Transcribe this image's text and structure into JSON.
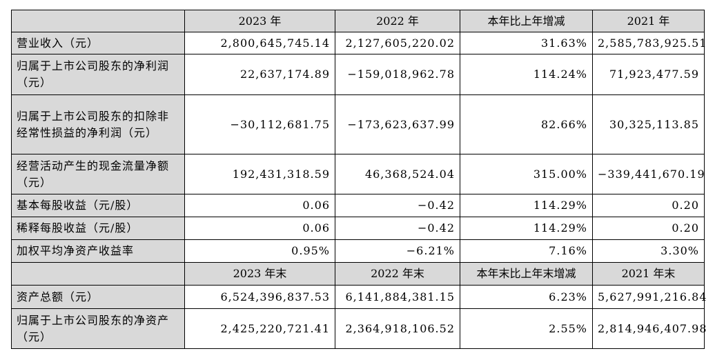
{
  "header1": [
    "2023 年",
    "2022 年",
    "本年比上年增减",
    "2021 年"
  ],
  "rows1": [
    {
      "label": "营业收入（元）",
      "v2023": "2,800,645,745.14",
      "v2022": "2,127,605,220.02",
      "change": "31.63%",
      "v2021": "2,585,783,925.51"
    },
    {
      "label": "归属于上市公司股东的净利润（元）",
      "v2023": "22,637,174.89",
      "v2022": "−159,018,962.78",
      "change": "114.24%",
      "v2021": "71,923,477.59"
    },
    {
      "label": "归属于上市公司股东的扣除非经常性损益的净利润（元）",
      "v2023": "−30,112,681.75",
      "v2022": "−173,623,637.99",
      "change": "82.66%",
      "v2021": "30,325,113.85"
    },
    {
      "label": "经营活动产生的现金流量净额（元）",
      "v2023": "192,431,318.59",
      "v2022": "46,368,524.04",
      "change": "315.00%",
      "v2021": "−339,441,670.19"
    },
    {
      "label": "基本每股收益（元/股）",
      "v2023": "0.06",
      "v2022": "−0.42",
      "change": "114.29%",
      "v2021": "0.20"
    },
    {
      "label": "稀释每股收益（元/股）",
      "v2023": "0.06",
      "v2022": "−0.42",
      "change": "114.29%",
      "v2021": "0.20"
    },
    {
      "label": "加权平均净资产收益率",
      "v2023": "0.95%",
      "v2022": "−6.21%",
      "change": "7.16%",
      "v2021": "3.30%"
    }
  ],
  "header2": [
    "2023 年末",
    "2022 年末",
    "本年末比上年末增减",
    "2021 年末"
  ],
  "rows2": [
    {
      "label": "资产总额（元）",
      "v2023": "6,524,396,837.53",
      "v2022": "6,141,884,381.15",
      "change": "6.23%",
      "v2021": "5,627,991,216.84"
    },
    {
      "label": "归属于上市公司股东的净资产（元）",
      "v2023": "2,425,220,721.41",
      "v2022": "2,364,918,106.52",
      "change": "2.55%",
      "v2021": "2,814,946,407.98"
    }
  ]
}
